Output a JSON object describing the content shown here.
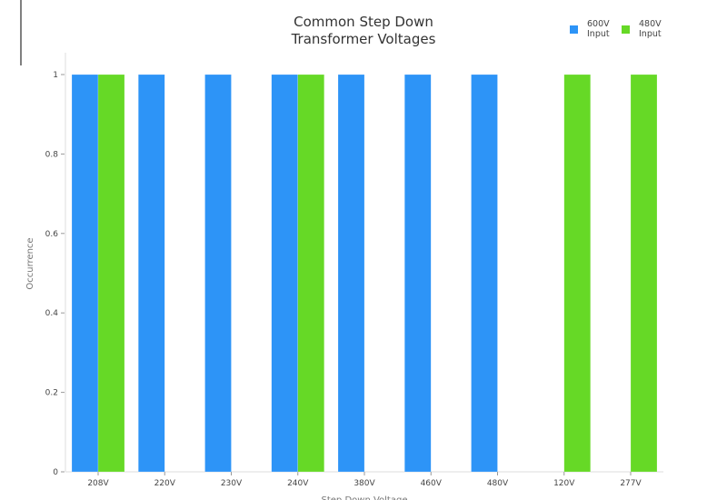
{
  "chart_data": {
    "type": "bar",
    "title_lines": [
      "Common Step Down",
      "Transformer Voltages"
    ],
    "xlabel": "Step Down Voltage",
    "ylabel": "Occurrence",
    "categories": [
      "208V",
      "220V",
      "230V",
      "240V",
      "380V",
      "460V",
      "480V",
      "120V",
      "277V"
    ],
    "series": [
      {
        "name_lines": [
          "600V",
          "Input"
        ],
        "color": "#2d94f7",
        "values": [
          1,
          1,
          1,
          1,
          1,
          1,
          1,
          0,
          0
        ]
      },
      {
        "name_lines": [
          "480V",
          "Input"
        ],
        "color": "#66d926",
        "values": [
          1,
          0,
          0,
          1,
          0,
          0,
          0,
          1,
          1
        ]
      }
    ],
    "ylim": [
      0,
      1
    ],
    "yticks": [
      0,
      0.2,
      0.4,
      0.6,
      0.8,
      1
    ],
    "ytick_labels": [
      "0",
      "0.2",
      "0.4",
      "0.6",
      "0.8",
      "1"
    ],
    "grid": false,
    "legend_placement": "top-right"
  }
}
